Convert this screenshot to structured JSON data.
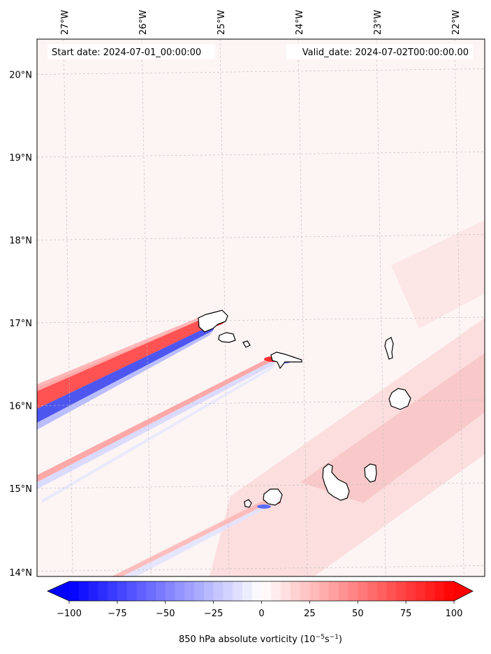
{
  "chart_data": {
    "type": "heatmap",
    "title": "",
    "start_label": "Start date: 2024-07-01_00:00:00",
    "valid_label": "Valid_date: 2024-07-02T00:00:00.00",
    "variable": "850 hPa absolute vorticity",
    "units_base": "(10",
    "units_exp1": "−5",
    "units_mid": "s",
    "units_exp2": "−1",
    "units_close": ")",
    "lon_ticks": [
      {
        "value": -27,
        "label": "27°W"
      },
      {
        "value": -26,
        "label": "26°W"
      },
      {
        "value": -25,
        "label": "25°W"
      },
      {
        "value": -24,
        "label": "24°W"
      },
      {
        "value": -23,
        "label": "23°W"
      },
      {
        "value": -22,
        "label": "22°W"
      }
    ],
    "lat_ticks": [
      {
        "value": 20,
        "label": "20°N"
      },
      {
        "value": 19,
        "label": "19°N"
      },
      {
        "value": 18,
        "label": "18°N"
      },
      {
        "value": 17,
        "label": "17°N"
      },
      {
        "value": 16,
        "label": "16°N"
      },
      {
        "value": 15,
        "label": "15°N"
      },
      {
        "value": 14,
        "label": "14°N"
      }
    ],
    "colorbar": {
      "min": -100,
      "max": 100,
      "levels": 40,
      "extend": "both",
      "cmap": "bwr",
      "ticks": [
        {
          "value": -100,
          "label": "−100"
        },
        {
          "value": -75,
          "label": "−75"
        },
        {
          "value": -50,
          "label": "−50"
        },
        {
          "value": -25,
          "label": "−25"
        },
        {
          "value": 0,
          "label": "0"
        },
        {
          "value": 25,
          "label": "25"
        },
        {
          "value": 50,
          "label": "50"
        },
        {
          "value": 75,
          "label": "75"
        },
        {
          "value": 100,
          "label": "100"
        }
      ]
    },
    "colors": {
      "neg": "#0000ff",
      "mid": "#ffffff",
      "pos": "#ff0000"
    },
    "features": [
      {
        "name": "santo-antao-wake",
        "kind": "dipole",
        "from": [
          -27.3,
          16.2
        ],
        "to": [
          -24.7,
          17.0
        ],
        "pos": 80,
        "neg": -65
      },
      {
        "name": "sao-nicolau-wake",
        "kind": "dipole",
        "from": [
          -27.3,
          14.9
        ],
        "to": [
          -24.0,
          16.6
        ],
        "pos": 40,
        "neg": -25
      },
      {
        "name": "fogo-wake",
        "kind": "dipole",
        "from": [
          -26.0,
          14.1
        ],
        "to": [
          -24.7,
          14.85
        ],
        "pos": 30,
        "neg": -15
      },
      {
        "name": "background-band",
        "kind": "positive",
        "from": [
          -24.5,
          15.0
        ],
        "to": [
          -21.6,
          16.8
        ],
        "pos": 15
      }
    ]
  }
}
